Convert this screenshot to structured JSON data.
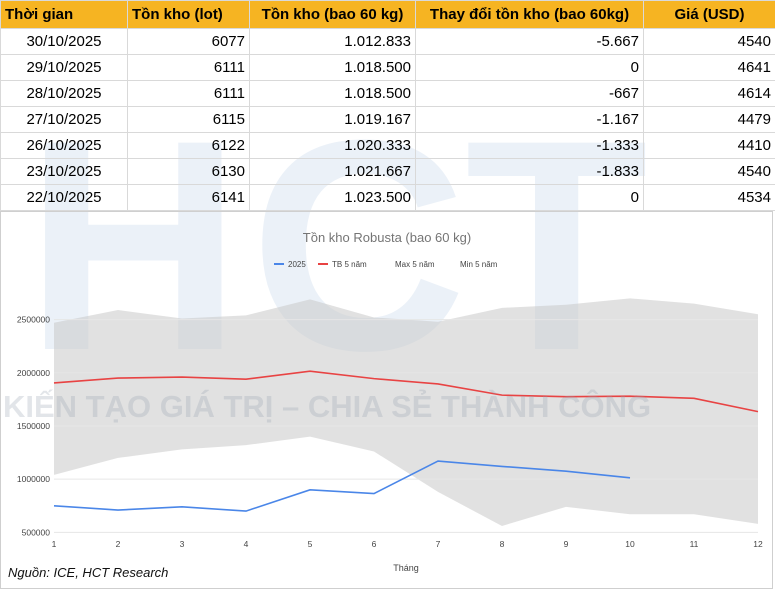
{
  "table": {
    "headers": [
      "Thời gian",
      "Tồn kho (lot)",
      "Tồn kho (bao 60 kg)",
      "Thay đổi tồn kho (bao 60kg)",
      "Giá (USD)"
    ],
    "rows": [
      [
        "30/10/2025",
        "6077",
        "1.012.833",
        "-5.667",
        "4540"
      ],
      [
        "29/10/2025",
        "6111",
        "1.018.500",
        "0",
        "4641"
      ],
      [
        "28/10/2025",
        "6111",
        "1.018.500",
        "-667",
        "4614"
      ],
      [
        "27/10/2025",
        "6115",
        "1.019.167",
        "-1.167",
        "4479"
      ],
      [
        "26/10/2025",
        "6122",
        "1.020.333",
        "-1.333",
        "4410"
      ],
      [
        "23/10/2025",
        "6130",
        "1.021.667",
        "-1.833",
        "4540"
      ],
      [
        "22/10/2025",
        "6141",
        "1.023.500",
        "0",
        "4534"
      ]
    ]
  },
  "watermark": {
    "letters": [
      "H",
      "C",
      "T"
    ],
    "slogan": "KIẾN TẠO GIÁ TRỊ – CHIA SẺ THÀNH CÔNG"
  },
  "source": "Nguồn: ICE, HCT Research",
  "chart_data": {
    "type": "line",
    "title": "Tồn kho Robusta (bao 60 kg)",
    "xlabel": "Tháng",
    "ylabel": "",
    "x": [
      1,
      2,
      3,
      4,
      5,
      6,
      7,
      8,
      9,
      10,
      11,
      12
    ],
    "xlim": [
      1,
      12
    ],
    "ylim": [
      400000,
      2750000
    ],
    "yticks": [
      500000,
      1000000,
      1500000,
      2000000,
      2500000
    ],
    "grid": true,
    "legend_position": "top",
    "series": [
      {
        "name": "2025",
        "color": "#4a86e8",
        "values": [
          750000,
          710000,
          740000,
          700000,
          900000,
          865000,
          1170000,
          1120000,
          1075000,
          1013000,
          null,
          null
        ]
      },
      {
        "name": "TB 5 năm",
        "color": "#e84343",
        "values": [
          1905000,
          1950000,
          1960000,
          1940000,
          2015000,
          1945000,
          1895000,
          1790000,
          1775000,
          1780000,
          1760000,
          1635000
        ]
      },
      {
        "name": "Max 5 năm",
        "color": "#d9d9d9",
        "values": [
          2470000,
          2590000,
          2510000,
          2540000,
          2690000,
          2520000,
          2480000,
          2610000,
          2640000,
          2700000,
          2650000,
          2550000
        ]
      },
      {
        "name": "Min 5 năm",
        "color": "#d9d9d9",
        "values": [
          1040000,
          1200000,
          1280000,
          1320000,
          1400000,
          1260000,
          880000,
          560000,
          740000,
          670000,
          670000,
          580000
        ]
      }
    ]
  }
}
